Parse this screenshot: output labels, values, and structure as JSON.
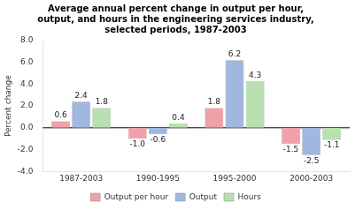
{
  "chart_data": {
    "type": "bar",
    "title": "Average annual percent change in output per hour,\noutput, and hours in the engineering services industry,\nselected periods, 1987-2003",
    "categories": [
      "1987-2003",
      "1990-1995",
      "1995-2000",
      "2000-2003"
    ],
    "series": [
      {
        "name": "Output per hour",
        "color": "#f0a0a8",
        "values": [
          0.6,
          -1.0,
          1.8,
          -1.5
        ],
        "value_labels": [
          "0.6",
          "-1.0",
          "1.8",
          "-1.5"
        ]
      },
      {
        "name": "Output",
        "color": "#a0b8e0",
        "values": [
          2.4,
          -0.6,
          6.2,
          -2.5
        ]
      },
      {
        "name": "Hours",
        "color": "#b8e0b0",
        "values": [
          1.8,
          0.4,
          4.3,
          -1.1
        ]
      }
    ],
    "y_label": "Percent change",
    "ylim": [
      -4.0,
      8.0
    ],
    "yticks": [
      {
        "value": -4,
        "label": "-4.0"
      },
      {
        "value": -2,
        "label": "-2.0"
      },
      {
        "value": 0,
        "label": "0.0"
      },
      {
        "value": 2,
        "label": "2.0"
      },
      {
        "value": 4,
        "label": "4.0"
      },
      {
        "value": 6,
        "label": "6.0"
      },
      {
        "value": 8,
        "label": "8.0"
      }
    ],
    "grid": false,
    "legend": "bottom",
    "data_labels": true
  }
}
